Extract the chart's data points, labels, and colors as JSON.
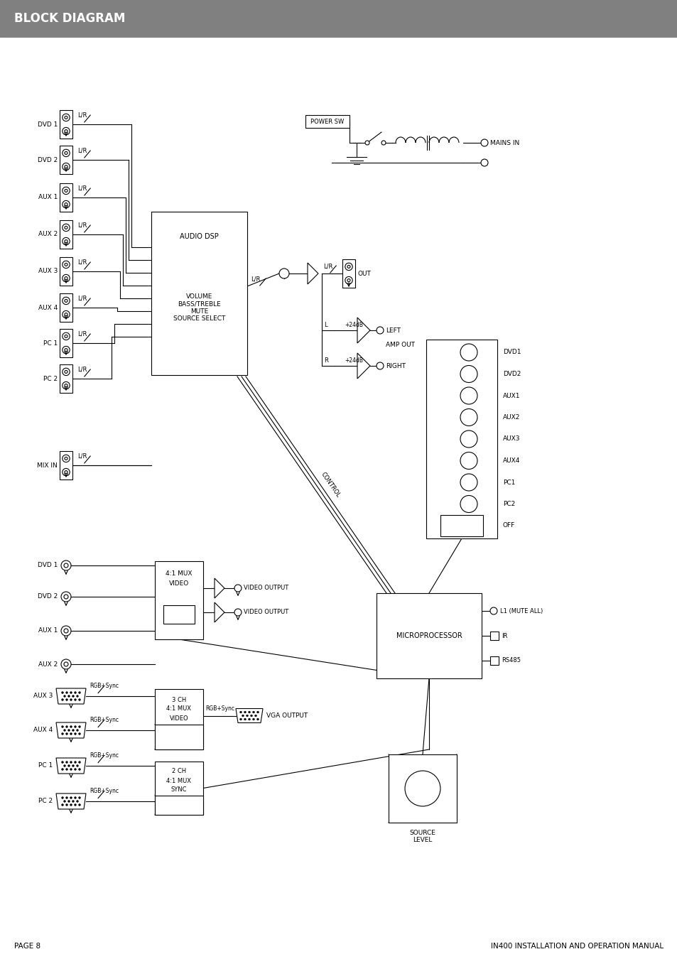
{
  "title": "BLOCK DIAGRAM",
  "title_bg": "#808080",
  "title_color": "#ffffff",
  "page_label": "PAGE 8",
  "manual_label": "IN400 INSTALLATION AND OPERATION MANUAL",
  "bg_color": "#ffffff",
  "lc": "#000000",
  "input_labels": [
    "DVD 1",
    "DVD 2",
    "AUX 1",
    "AUX 2",
    "AUX 3",
    "AUX 4",
    "PC 1",
    "PC 2"
  ],
  "mix_in_label": "MIX IN",
  "power_sw_label": "POWER SW",
  "mains_in_label": "MAINS IN",
  "amp_out_label": "AMP OUT",
  "left_label": "LEFT",
  "right_label": "RIGHT",
  "out_label": "OUT",
  "vga_output_label": "VGA OUTPUT",
  "video_output_label": "VIDEO OUTPUT",
  "microprocessor_label": "MICROPROCESSOR",
  "source_level_label": "SOURCE\nLEVEL",
  "remote_labels": [
    "DVD1",
    "DVD2",
    "AUX1",
    "AUX2",
    "AUX3",
    "AUX4",
    "PC1",
    "PC2",
    "OFF"
  ],
  "l1_label": "L1 (MUTE ALL)",
  "ir_label": "IR",
  "rs485_label": "RS485",
  "rgb_label": "RGB+Sync",
  "video_input_labels": [
    "DVD 1",
    "DVD 2",
    "AUX 1",
    "AUX 2"
  ],
  "rgb_input_labels": [
    "AUX 3",
    "AUX 4",
    "PC 1",
    "PC 2"
  ],
  "dsp_label1": "AUDIO DSP",
  "dsp_label2": "VOLUME\nBASS/TREBLE\nMUTE\nSOURCE SELECT",
  "control_label": "CONTROL"
}
